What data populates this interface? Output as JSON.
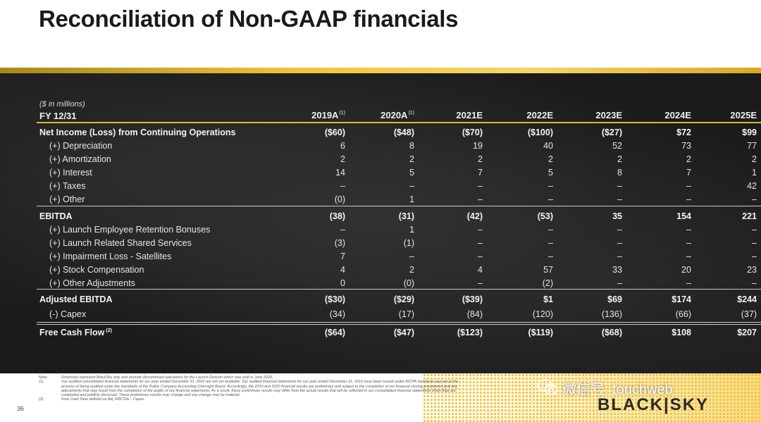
{
  "title": "Reconciliation of Non-GAAP financials",
  "units_label": "($ in millions)",
  "fy_label": "FY 12/31",
  "columns": [
    {
      "label": "2019A",
      "sup": "(1)"
    },
    {
      "label": "2020A",
      "sup": "(1)"
    },
    {
      "label": "2021E",
      "sup": ""
    },
    {
      "label": "2022E",
      "sup": ""
    },
    {
      "label": "2023E",
      "sup": ""
    },
    {
      "label": "2024E",
      "sup": ""
    },
    {
      "label": "2025E",
      "sup": ""
    }
  ],
  "rows": [
    {
      "label": "Net Income (Loss) from Continuing Operations",
      "sup": "",
      "bold": true,
      "indent": false,
      "values": [
        "($60)",
        "($48)",
        "($70)",
        "($100)",
        "($27)",
        "$72",
        "$99"
      ]
    },
    {
      "label": "(+) Depreciation",
      "sup": "",
      "bold": false,
      "indent": true,
      "values": [
        "6",
        "8",
        "19",
        "40",
        "52",
        "73",
        "77"
      ]
    },
    {
      "label": "(+) Amortization",
      "sup": "",
      "bold": false,
      "indent": true,
      "values": [
        "2",
        "2",
        "2",
        "2",
        "2",
        "2",
        "2"
      ]
    },
    {
      "label": "(+) Interest",
      "sup": "",
      "bold": false,
      "indent": true,
      "values": [
        "14",
        "5",
        "7",
        "5",
        "8",
        "7",
        "1"
      ]
    },
    {
      "label": "(+) Taxes",
      "sup": "",
      "bold": false,
      "indent": true,
      "values": [
        "–",
        "–",
        "–",
        "–",
        "–",
        "–",
        "42"
      ]
    },
    {
      "label": "(+) Other",
      "sup": "",
      "bold": false,
      "indent": true,
      "values": [
        "(0)",
        "1",
        "–",
        "–",
        "–",
        "–",
        "–"
      ]
    },
    {
      "label": "EBITDA",
      "sup": "",
      "bold": true,
      "indent": false,
      "values": [
        "(38)",
        "(31)",
        "(42)",
        "(53)",
        "35",
        "154",
        "221"
      ]
    },
    {
      "label": "(+) Launch Employee Retention Bonuses",
      "sup": "",
      "bold": false,
      "indent": true,
      "values": [
        "–",
        "1",
        "–",
        "–",
        "–",
        "–",
        "–"
      ]
    },
    {
      "label": "(+) Launch Related Shared Services",
      "sup": "",
      "bold": false,
      "indent": true,
      "values": [
        "(3)",
        "(1)",
        "–",
        "–",
        "–",
        "–",
        "–"
      ]
    },
    {
      "label": "(+) Impairment Loss - Satellites",
      "sup": "",
      "bold": false,
      "indent": true,
      "values": [
        "7",
        "–",
        "–",
        "–",
        "–",
        "–",
        "–"
      ]
    },
    {
      "label": "(+) Stock Compensation",
      "sup": "",
      "bold": false,
      "indent": true,
      "values": [
        "4",
        "2",
        "4",
        "57",
        "33",
        "20",
        "23"
      ]
    },
    {
      "label": "(+) Other Adjustments",
      "sup": "",
      "bold": false,
      "indent": true,
      "values": [
        "0",
        "(0)",
        "–",
        "(2)",
        "–",
        "–",
        "–"
      ]
    },
    {
      "label": "Adjusted EBITDA",
      "sup": "",
      "bold": true,
      "indent": false,
      "values": [
        "($30)",
        "($29)",
        "($39)",
        "$1",
        "$69",
        "$174",
        "$244"
      ]
    },
    {
      "label": "(-) Capex",
      "sup": "",
      "bold": false,
      "indent": true,
      "values": [
        "(34)",
        "(17)",
        "(84)",
        "(120)",
        "(136)",
        "(66)",
        "(37)"
      ]
    },
    {
      "label": "Free Cash Flow",
      "sup": "(2)",
      "bold": true,
      "indent": false,
      "values": [
        "($64)",
        "($47)",
        "($123)",
        "($119)",
        "($68)",
        "$108",
        "$207"
      ]
    }
  ],
  "notes": [
    {
      "key": "Note:",
      "text": "Financials represent BlackSky only and exclude discontinued operations for the Launch Division which was sold in June 2020."
    },
    {
      "key": "(1)",
      "text": "Our audited consolidated financial statements for our year ended December 31, 2020 are not yet available. Our audited financial statements for our year ended December 31, 2019 have been issued under AICPA standards and are in the process of being audited under the standards of the Public Company Accounting Oversight Board. Accordingly, the 2019 and 2020 financial results are preliminary and subject to the completion of our financial closing procedures and any adjustments that may result from the completion of the audits of our financial statements. As a result, these preliminary results may differ from the actual results that will be reflected in our consolidated financial statements when they are completed and publicly disclosed. These preliminary results may change and any change may be material."
    },
    {
      "key": "(2)",
      "text": "Free Cash Flow defined as Adj. EBITDA – Capex."
    }
  ],
  "page_number": "36",
  "watermark": "微信号: touchweb",
  "logo_text": "BLACK|SKY",
  "colors": {
    "accent": "#e1b733",
    "board": "#222222",
    "text": "#ebebeb"
  }
}
